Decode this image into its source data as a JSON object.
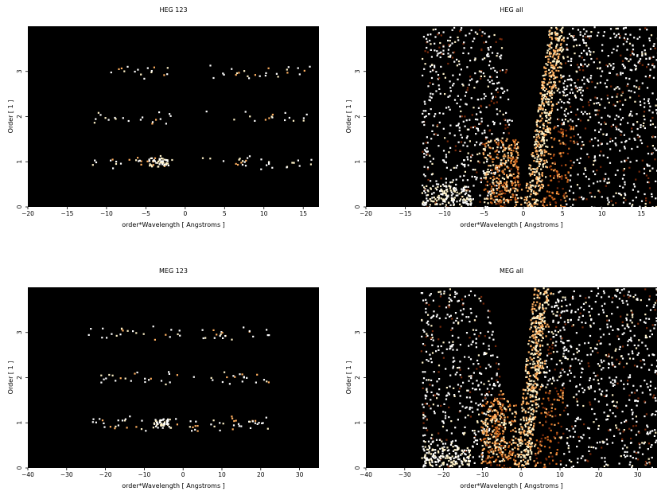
{
  "chart_data": [
    {
      "type": "heatmap",
      "title": "HEG 123",
      "xlabel": "order*Wavelength [ Angstroms ]",
      "ylabel": "Order [ 1 ]",
      "xlim": [
        -20,
        17
      ],
      "ylim": [
        0,
        4
      ],
      "xticks": [
        -20,
        -15,
        -10,
        -5,
        0,
        5,
        10,
        15
      ],
      "xtick_labels": [
        "−20",
        "−15",
        "−10",
        "−5",
        "0",
        "5",
        "10",
        "15"
      ],
      "yticks": [
        0,
        1,
        2,
        3
      ],
      "ytick_labels": [
        "0",
        "1",
        "2",
        "3"
      ],
      "background": "#000000",
      "mode": "orders",
      "order_bands": [
        {
          "order": 1,
          "x_range": [
            -12,
            16
          ],
          "intensity": "medium",
          "gap": [
            -1.5,
            2
          ]
        },
        {
          "order": 2,
          "x_range": [
            -12,
            16
          ],
          "intensity": "low",
          "gap": [
            -1.5,
            2
          ]
        },
        {
          "order": 3,
          "x_range": [
            -12,
            16
          ],
          "intensity": "low",
          "gap": [
            -1.5,
            2
          ]
        }
      ]
    },
    {
      "type": "heatmap",
      "title": "HEG all",
      "xlabel": "order*Wavelength [ Angstroms ]",
      "ylabel": "Order [ 1 ]",
      "xlim": [
        -20,
        17
      ],
      "ylim": [
        0,
        4
      ],
      "xticks": [
        -20,
        -15,
        -10,
        -5,
        0,
        5,
        10,
        15
      ],
      "xtick_labels": [
        "−20",
        "−15",
        "−10",
        "−5",
        "0",
        "5",
        "10",
        "15"
      ],
      "yticks": [
        0,
        1,
        2,
        3
      ],
      "ytick_labels": [
        "0",
        "1",
        "2",
        "3"
      ],
      "background": "#000000",
      "mode": "all",
      "left_edge": -13,
      "right_edge": 17,
      "bright_streak": {
        "from": [
          0.8,
          0
        ],
        "to": [
          4.2,
          4
        ]
      }
    },
    {
      "type": "heatmap",
      "title": "MEG 123",
      "xlabel": "order*Wavelength [ Angstroms ]",
      "ylabel": "Order [ 1 ]",
      "xlim": [
        -40,
        35
      ],
      "ylim": [
        0,
        4
      ],
      "xticks": [
        -40,
        -30,
        -20,
        -10,
        0,
        10,
        20,
        30
      ],
      "xtick_labels": [
        "−40",
        "−30",
        "−20",
        "−10",
        "0",
        "10",
        "20",
        "30"
      ],
      "yticks": [
        0,
        1,
        2,
        3
      ],
      "ytick_labels": [
        "0",
        "1",
        "2",
        "3"
      ],
      "background": "#000000",
      "mode": "orders",
      "order_bands": [
        {
          "order": 1,
          "x_range": [
            -25,
            22
          ],
          "intensity": "medium",
          "gap": [
            -1,
            1
          ]
        },
        {
          "order": 2,
          "x_range": [
            -25,
            22
          ],
          "intensity": "low",
          "gap": [
            -1,
            1
          ]
        },
        {
          "order": 3,
          "x_range": [
            -25,
            22
          ],
          "intensity": "low",
          "gap": [
            -1,
            1
          ]
        }
      ]
    },
    {
      "type": "heatmap",
      "title": "MEG all",
      "xlabel": "order*Wavelength [ Angstroms ]",
      "ylabel": "Order [ 1 ]",
      "xlim": [
        -40,
        35
      ],
      "ylim": [
        0,
        4
      ],
      "xticks": [
        -40,
        -30,
        -20,
        -10,
        0,
        10,
        20,
        30
      ],
      "xtick_labels": [
        "−40",
        "−30",
        "−20",
        "−10",
        "0",
        "10",
        "20",
        "30"
      ],
      "yticks": [
        0,
        1,
        2,
        3
      ],
      "ytick_labels": [
        "0",
        "1",
        "2",
        "3"
      ],
      "background": "#000000",
      "mode": "all",
      "left_edge": -26,
      "right_edge": 35,
      "bright_streak": {
        "from": [
          0,
          0
        ],
        "to": [
          5,
          4
        ]
      }
    }
  ],
  "colors": {
    "background": "#000000",
    "dim": "#7a2a0a",
    "mid": "#d2691e",
    "bright": "#ffb060",
    "hot": "#fff2c8",
    "white": "#ffffff"
  }
}
